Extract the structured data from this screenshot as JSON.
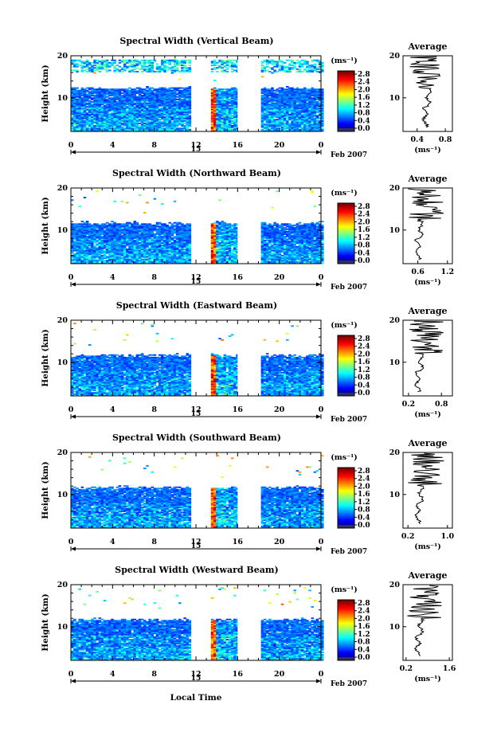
{
  "figure": {
    "xlabel": "Local Time",
    "date_label": "Feb 2007",
    "day_label": "15",
    "ylabel": "Height (km)",
    "units_label": "(ms⁻¹)",
    "avg_title": "Average",
    "avg_xlabel": "(ms⁻¹)"
  },
  "chart_data": [
    {
      "type": "heatmap",
      "title": "Spectral Width (Vertical Beam)",
      "x_ticks": [
        "0",
        "4",
        "8",
        "12",
        "16",
        "20",
        "0"
      ],
      "xlim": [
        0,
        24
      ],
      "y_ticks": [
        "20",
        "10"
      ],
      "ylim": [
        2,
        20
      ],
      "colorbar": {
        "unit": "(ms⁻¹)",
        "ticks": [
          "2.8",
          "2.4",
          "2.0",
          "1.6",
          "1.2",
          "0.8",
          "0.4",
          "0.0"
        ],
        "range": [
          0,
          2.8
        ]
      },
      "data_gaps": [
        [
          11.6,
          13.4
        ],
        [
          16.0,
          18.2
        ]
      ],
      "average_profile": {
        "title": "Average",
        "xlabel": "(ms⁻¹)",
        "x_ticks": [
          "0.4",
          "0.8"
        ],
        "xlim": [
          0.2,
          0.9
        ],
        "y_ticks": [
          "20",
          "10"
        ]
      }
    },
    {
      "type": "heatmap",
      "title": "Spectral Width (Northward Beam)",
      "x_ticks": [
        "0",
        "4",
        "8",
        "12",
        "16",
        "20",
        "0"
      ],
      "xlim": [
        0,
        24
      ],
      "y_ticks": [
        "20",
        "10"
      ],
      "ylim": [
        2,
        20
      ],
      "colorbar": {
        "unit": "(ms⁻¹)",
        "ticks": [
          "2.8",
          "2.4",
          "2.0",
          "1.6",
          "1.2",
          "0.8",
          "0.4",
          "0.0"
        ],
        "range": [
          0,
          2.8
        ]
      },
      "data_gaps": [
        [
          11.6,
          13.4
        ],
        [
          16.0,
          18.2
        ]
      ],
      "average_profile": {
        "title": "Average",
        "xlabel": "(ms⁻¹)",
        "x_ticks": [
          "0.6",
          "1.2"
        ],
        "xlim": [
          0.3,
          1.3
        ],
        "y_ticks": [
          "20",
          "10"
        ]
      }
    },
    {
      "type": "heatmap",
      "title": "Spectral Width (Eastward Beam)",
      "x_ticks": [
        "0",
        "4",
        "8",
        "12",
        "16",
        "20",
        "0"
      ],
      "xlim": [
        0,
        24
      ],
      "y_ticks": [
        "20",
        "10"
      ],
      "ylim": [
        2,
        20
      ],
      "colorbar": {
        "unit": "(ms⁻¹)",
        "ticks": [
          "2.8",
          "2.4",
          "2.0",
          "1.6",
          "1.2",
          "0.8",
          "0.4",
          "0.0"
        ],
        "range": [
          0,
          2.8
        ]
      },
      "data_gaps": [
        [
          11.6,
          13.4
        ],
        [
          16.0,
          18.2
        ]
      ],
      "average_profile": {
        "title": "Average",
        "xlabel": "(ms⁻¹)",
        "x_ticks": [
          "0.2",
          "0.8"
        ],
        "xlim": [
          0.1,
          1.0
        ],
        "y_ticks": [
          "20",
          "10"
        ]
      }
    },
    {
      "type": "heatmap",
      "title": "Spectral Width (Southward Beam)",
      "x_ticks": [
        "0",
        "4",
        "8",
        "12",
        "16",
        "20",
        "0"
      ],
      "xlim": [
        0,
        24
      ],
      "y_ticks": [
        "20",
        "10"
      ],
      "ylim": [
        2,
        20
      ],
      "colorbar": {
        "unit": "(ms⁻¹)",
        "ticks": [
          "2.8",
          "2.4",
          "2.0",
          "1.6",
          "1.2",
          "0.8",
          "0.4",
          "0.0"
        ],
        "range": [
          0,
          2.8
        ]
      },
      "data_gaps": [
        [
          11.6,
          13.4
        ],
        [
          16.0,
          18.2
        ]
      ],
      "average_profile": {
        "title": "Average",
        "xlabel": "(ms⁻¹)",
        "x_ticks": [
          "0.2",
          "1.0"
        ],
        "xlim": [
          0.1,
          1.1
        ],
        "y_ticks": [
          "20",
          "10"
        ]
      }
    },
    {
      "type": "heatmap",
      "title": "Spectral Width (Westward Beam)",
      "x_ticks": [
        "0",
        "4",
        "8",
        "12",
        "16",
        "20",
        "0"
      ],
      "xlim": [
        0,
        24
      ],
      "y_ticks": [
        "20",
        "10"
      ],
      "ylim": [
        2,
        20
      ],
      "colorbar": {
        "unit": "(ms⁻¹)",
        "ticks": [
          "2.8",
          "2.4",
          "2.0",
          "1.6",
          "1.2",
          "0.8",
          "0.4",
          "0.0"
        ],
        "range": [
          0,
          2.8
        ]
      },
      "data_gaps": [
        [
          11.6,
          13.4
        ],
        [
          16.0,
          18.2
        ]
      ],
      "average_profile": {
        "title": "Average",
        "xlabel": "(ms⁻¹)",
        "x_ticks": [
          "0.2",
          "1.6"
        ],
        "xlim": [
          0.1,
          1.7
        ],
        "y_ticks": [
          "20",
          "10"
        ]
      }
    }
  ]
}
